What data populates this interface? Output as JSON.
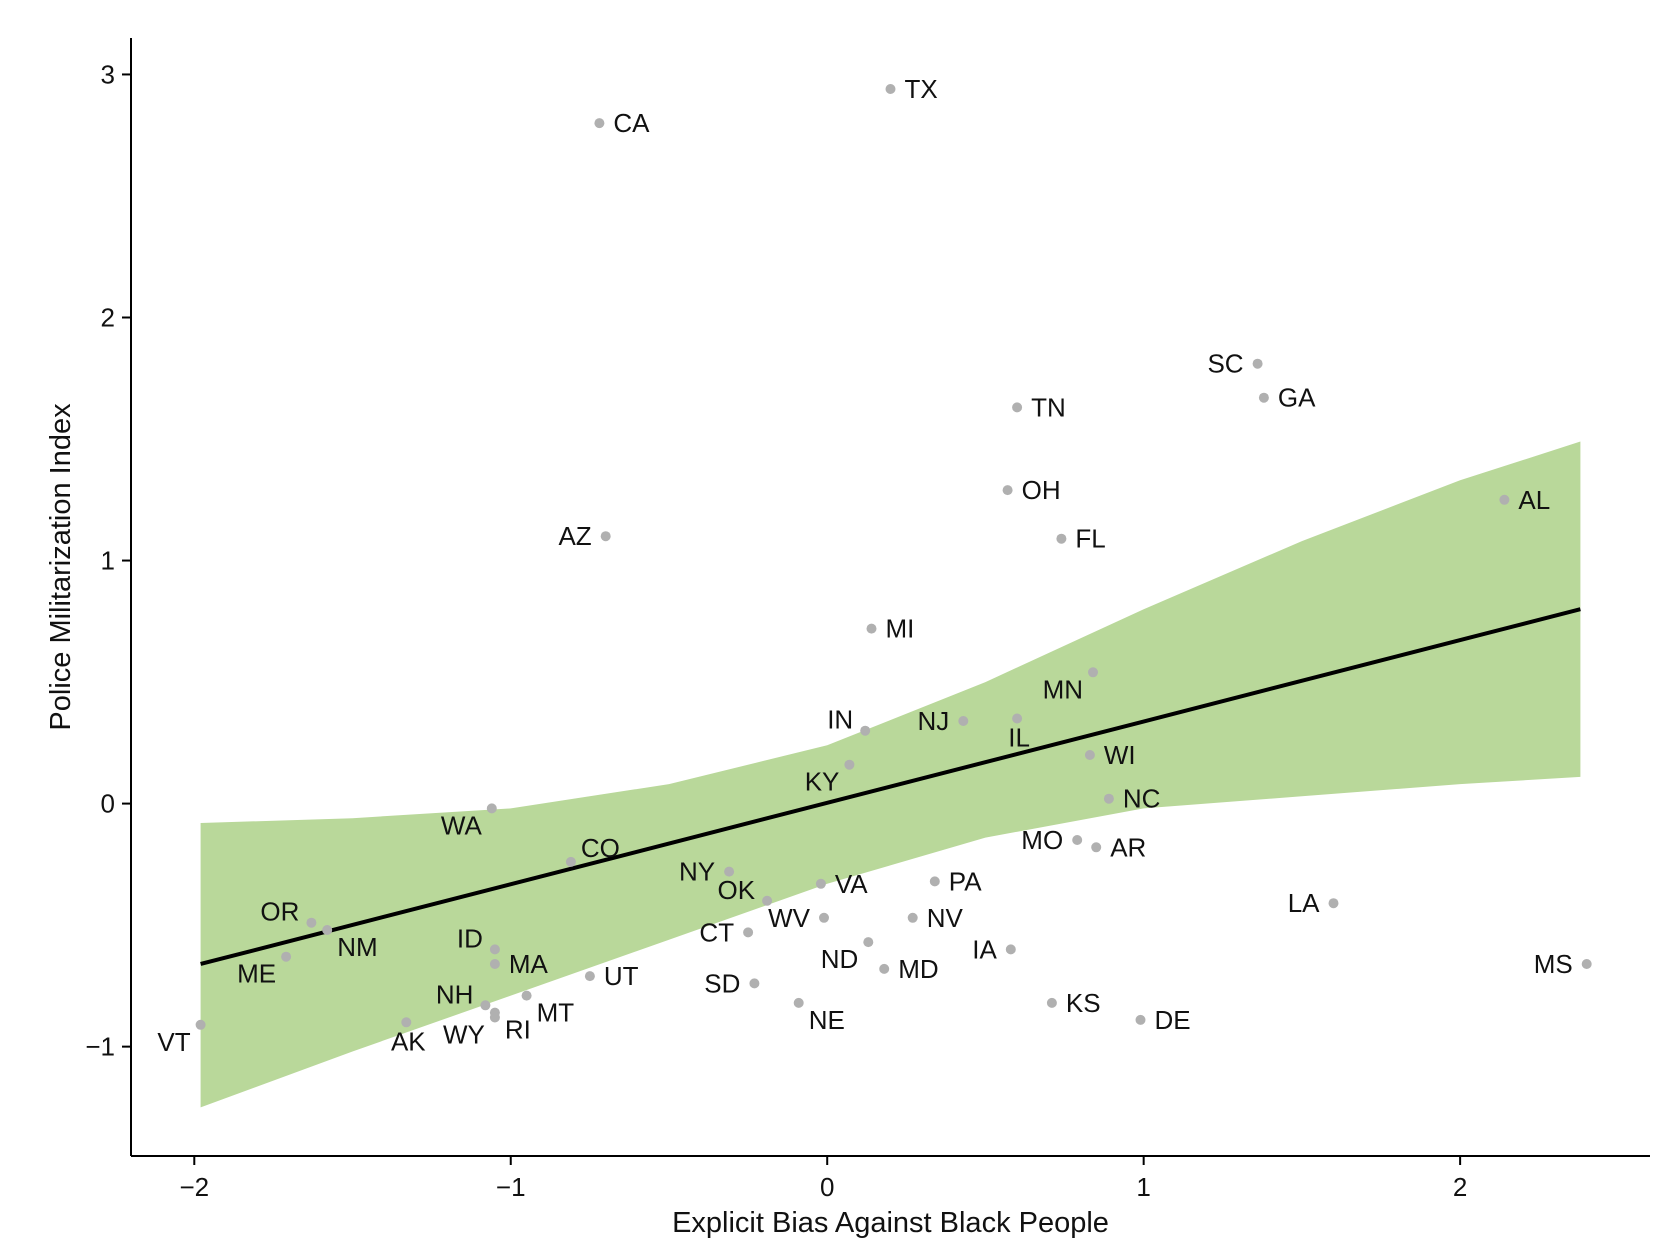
{
  "chart_data": {
    "type": "scatter",
    "xlabel": "Explicit Bias Against Black People",
    "ylabel": "Police Militarization Index",
    "xlim": [
      -2.2,
      2.6
    ],
    "ylim": [
      -1.45,
      3.15
    ],
    "xticks": [
      -2,
      -1,
      0,
      1,
      2
    ],
    "xtick_labels": [
      "−2",
      "−1",
      "0",
      "1",
      "2"
    ],
    "yticks": [
      -1,
      0,
      1,
      2,
      3
    ],
    "ytick_labels": [
      "−1",
      "0",
      "1",
      "2",
      "3"
    ],
    "grid": false,
    "colors": {
      "points": "#b0b0b0",
      "band": "#b9d89a",
      "line": "#000000",
      "axis": "#000000"
    },
    "regression": {
      "x": [
        -1.98,
        2.38
      ],
      "y": [
        -0.66,
        0.8
      ]
    },
    "confidence_band": {
      "x": [
        -1.98,
        -1.5,
        -1.0,
        -0.5,
        0.0,
        0.5,
        1.0,
        1.5,
        2.0,
        2.38
      ],
      "upper": [
        -0.08,
        -0.06,
        -0.02,
        0.08,
        0.24,
        0.5,
        0.8,
        1.08,
        1.33,
        1.49
      ],
      "lower": [
        -1.25,
        -1.02,
        -0.79,
        -0.56,
        -0.33,
        -0.14,
        -0.02,
        0.03,
        0.08,
        0.11
      ]
    },
    "points": [
      {
        "label": "TX",
        "x": 0.2,
        "y": 2.94,
        "pos": "right"
      },
      {
        "label": "CA",
        "x": -0.72,
        "y": 2.8,
        "pos": "right"
      },
      {
        "label": "SC",
        "x": 1.36,
        "y": 1.81,
        "pos": "left"
      },
      {
        "label": "GA",
        "x": 1.38,
        "y": 1.67,
        "pos": "right"
      },
      {
        "label": "TN",
        "x": 0.6,
        "y": 1.63,
        "pos": "right"
      },
      {
        "label": "OH",
        "x": 0.57,
        "y": 1.29,
        "pos": "right"
      },
      {
        "label": "AL",
        "x": 2.14,
        "y": 1.25,
        "pos": "right"
      },
      {
        "label": "AZ",
        "x": -0.7,
        "y": 1.1,
        "pos": "left"
      },
      {
        "label": "FL",
        "x": 0.74,
        "y": 1.09,
        "pos": "right"
      },
      {
        "label": "MI",
        "x": 0.14,
        "y": 0.72,
        "pos": "right"
      },
      {
        "label": "MN",
        "x": 0.84,
        "y": 0.54,
        "pos": "below-left"
      },
      {
        "label": "IL",
        "x": 0.6,
        "y": 0.35,
        "pos": "below"
      },
      {
        "label": "NJ",
        "x": 0.43,
        "y": 0.34,
        "pos": "left"
      },
      {
        "label": "IN",
        "x": 0.12,
        "y": 0.3,
        "pos": "upper-left"
      },
      {
        "label": "WI",
        "x": 0.83,
        "y": 0.2,
        "pos": "right"
      },
      {
        "label": "KY",
        "x": 0.07,
        "y": 0.16,
        "pos": "below-left"
      },
      {
        "label": "NC",
        "x": 0.89,
        "y": 0.02,
        "pos": "right"
      },
      {
        "label": "WA",
        "x": -1.06,
        "y": -0.02,
        "pos": "below-left"
      },
      {
        "label": "MO",
        "x": 0.79,
        "y": -0.15,
        "pos": "left"
      },
      {
        "label": "AR",
        "x": 0.85,
        "y": -0.18,
        "pos": "right"
      },
      {
        "label": "CO",
        "x": -0.81,
        "y": -0.24,
        "pos": "upper-right"
      },
      {
        "label": "NY",
        "x": -0.31,
        "y": -0.28,
        "pos": "left"
      },
      {
        "label": "PA",
        "x": 0.34,
        "y": -0.32,
        "pos": "right"
      },
      {
        "label": "VA",
        "x": -0.02,
        "y": -0.33,
        "pos": "right"
      },
      {
        "label": "OK",
        "x": -0.19,
        "y": -0.4,
        "pos": "upper-left"
      },
      {
        "label": "LA",
        "x": 1.6,
        "y": -0.41,
        "pos": "left"
      },
      {
        "label": "NV",
        "x": 0.27,
        "y": -0.47,
        "pos": "right"
      },
      {
        "label": "WV",
        "x": -0.01,
        "y": -0.47,
        "pos": "left"
      },
      {
        "label": "OR",
        "x": -1.63,
        "y": -0.49,
        "pos": "upper-left"
      },
      {
        "label": "NM",
        "x": -1.58,
        "y": -0.52,
        "pos": "below-right"
      },
      {
        "label": "CT",
        "x": -0.25,
        "y": -0.53,
        "pos": "left"
      },
      {
        "label": "ND",
        "x": 0.13,
        "y": -0.57,
        "pos": "below-left"
      },
      {
        "label": "ID",
        "x": -1.05,
        "y": -0.6,
        "pos": "upper-left"
      },
      {
        "label": "IA",
        "x": 0.58,
        "y": -0.6,
        "pos": "left"
      },
      {
        "label": "ME",
        "x": -1.71,
        "y": -0.63,
        "pos": "below-left"
      },
      {
        "label": "MS",
        "x": 2.4,
        "y": -0.66,
        "pos": "left"
      },
      {
        "label": "MA",
        "x": -1.05,
        "y": -0.66,
        "pos": "right"
      },
      {
        "label": "MD",
        "x": 0.18,
        "y": -0.68,
        "pos": "right"
      },
      {
        "label": "UT",
        "x": -0.75,
        "y": -0.71,
        "pos": "right"
      },
      {
        "label": "SD",
        "x": -0.23,
        "y": -0.74,
        "pos": "left"
      },
      {
        "label": "MT",
        "x": -0.95,
        "y": -0.79,
        "pos": "below-right"
      },
      {
        "label": "NE",
        "x": -0.09,
        "y": -0.82,
        "pos": "below-right"
      },
      {
        "label": "KS",
        "x": 0.71,
        "y": -0.82,
        "pos": "right"
      },
      {
        "label": "NH",
        "x": -1.08,
        "y": -0.83,
        "pos": "upper-left"
      },
      {
        "label": "RI",
        "x": -1.05,
        "y": -0.86,
        "pos": "below-right"
      },
      {
        "label": "DE",
        "x": 0.99,
        "y": -0.89,
        "pos": "right"
      },
      {
        "label": "AK",
        "x": -1.33,
        "y": -0.9,
        "pos": "below"
      },
      {
        "label": "VT",
        "x": -1.98,
        "y": -0.91,
        "pos": "below-left"
      },
      {
        "label": "WY",
        "x": -1.05,
        "y": -0.88,
        "pos": "below-left"
      }
    ]
  }
}
